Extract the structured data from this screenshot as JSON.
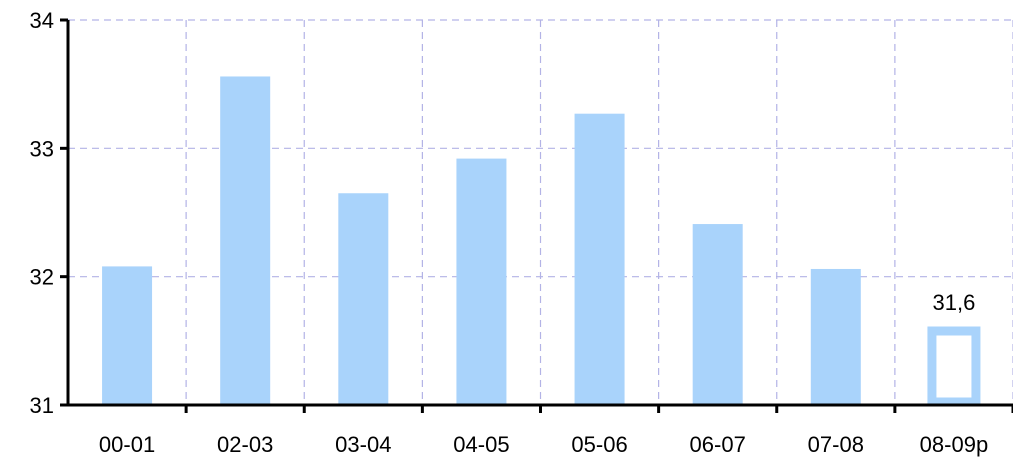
{
  "chart_data": {
    "type": "bar",
    "categories": [
      "00-01",
      "02-03",
      "03-04",
      "04-05",
      "05-06",
      "06-07",
      "07-08",
      "08-09p"
    ],
    "values": [
      32.08,
      33.56,
      32.65,
      32.92,
      33.27,
      32.41,
      32.06,
      31.6
    ],
    "ylim": [
      31,
      34
    ],
    "yticks": [
      31,
      32,
      33,
      34
    ],
    "ytick_labels": [
      "31",
      "32",
      "33",
      "34"
    ],
    "grid": true,
    "legend": "none",
    "highlight_last": true,
    "data_labels": [
      {
        "index": 7,
        "text": "31,6"
      }
    ],
    "colors": {
      "bar": "#a9d3fb",
      "grid": "#b3b3e6",
      "axis": "#000000",
      "highlight_fill": "#ffffff"
    }
  }
}
